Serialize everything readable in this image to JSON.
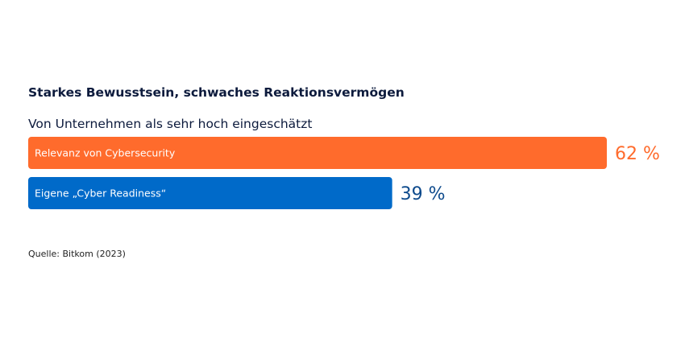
{
  "chart_data": {
    "type": "bar",
    "orientation": "horizontal",
    "title": "Starkes Bewusstsein, schwaches Reaktionsvermögen",
    "subtitle": "Von Unternehmen als sehr hoch eingeschätzt",
    "categories": [
      "Relevanz von Cybersecurity",
      "Eigene „Cyber Readiness“"
    ],
    "values": [
      62,
      39
    ],
    "value_labels": [
      "62 %",
      "39 %"
    ],
    "colors": [
      "#ff6b2c",
      "#006ac9"
    ],
    "label_colors": [
      "#ff6b2c",
      "#0d4a8c"
    ],
    "xlim": [
      0,
      100
    ],
    "grid": false,
    "legend": "none"
  },
  "source": "Quelle: Bitkom (2023)"
}
